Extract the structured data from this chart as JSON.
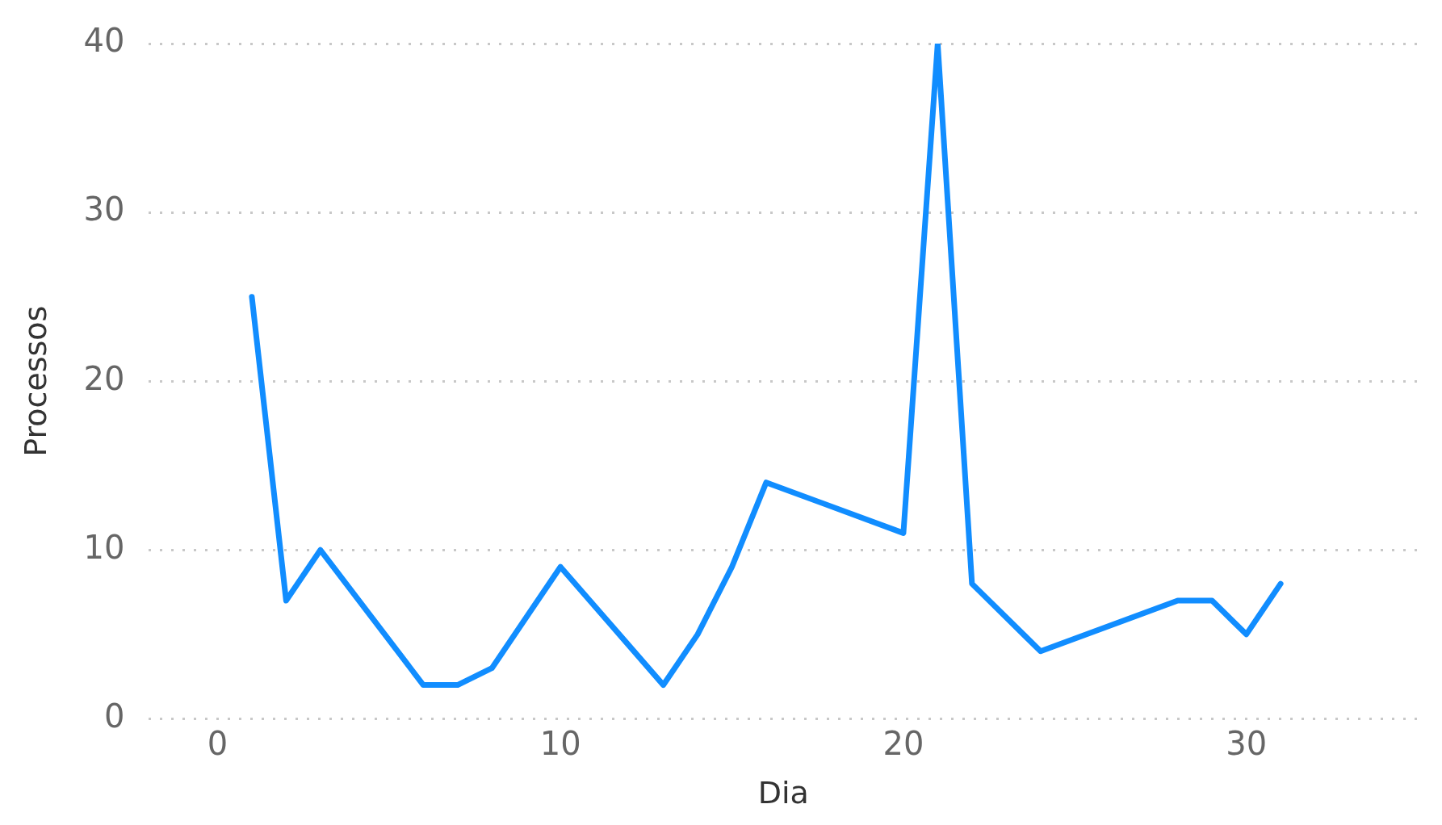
{
  "chart_data": {
    "type": "line",
    "xlabel": "Dia",
    "ylabel": "Processos",
    "x": [
      1,
      2,
      3,
      6,
      7,
      8,
      10,
      13,
      14,
      15,
      16,
      20,
      21,
      22,
      24,
      28,
      29,
      30,
      31
    ],
    "series": [
      {
        "color": "#118dff",
        "values": [
          25,
          7,
          10,
          2,
          2,
          3,
          9,
          2,
          5,
          9,
          14,
          11,
          40,
          8,
          4,
          7,
          7,
          5,
          8
        ]
      }
    ],
    "xlim": [
      -2,
      35
    ],
    "xticks": [
      0,
      10,
      20,
      30
    ],
    "ylim": [
      0,
      40
    ],
    "yticks": [
      0,
      10,
      20,
      30,
      40
    ],
    "grid": "y",
    "legend": false,
    "marker": "none",
    "line_style": "solid"
  }
}
